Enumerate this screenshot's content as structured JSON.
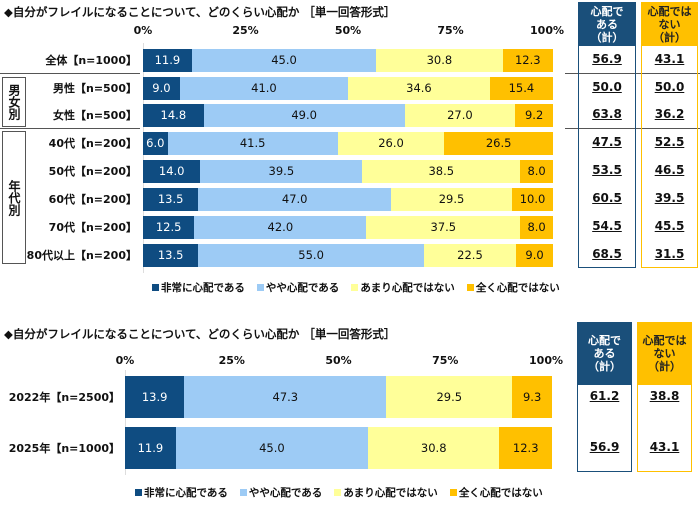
{
  "colors": {
    "very": "#0f4c81",
    "some": "#9dcbf5",
    "notmuch": "#ffff99",
    "notatall": "#ffc000",
    "header_yes": "#1a4f7a",
    "header_no": "#ffc000"
  },
  "chart_data": [
    {
      "type": "bar",
      "stacked": true,
      "orientation": "horizontal",
      "title": "◆自分がフレイルになることについて、どのくらい心配か ［単一回答形式］",
      "xticks": [
        "0%",
        "25%",
        "50%",
        "75%",
        "100%"
      ],
      "xlim": [
        0,
        100
      ],
      "groups": [
        {
          "label": "男女別",
          "rows": [
            1,
            2
          ]
        },
        {
          "label": "年代別",
          "rows": [
            3,
            4,
            5,
            6,
            7
          ]
        }
      ],
      "categories": [
        "全体【n=1000】",
        "男性【n=500】",
        "女性【n=500】",
        "40代【n=200】",
        "50代【n=200】",
        "60代【n=200】",
        "70代【n=200】",
        "80代以上【n=200】"
      ],
      "series": [
        {
          "name": "非常に心配である",
          "values": [
            11.9,
            9.0,
            14.8,
            6.0,
            14.0,
            13.5,
            12.5,
            13.5
          ]
        },
        {
          "name": "やや心配である",
          "values": [
            45.0,
            41.0,
            49.0,
            41.5,
            39.5,
            47.0,
            42.0,
            55.0
          ]
        },
        {
          "name": "あまり心配ではない",
          "values": [
            30.8,
            34.6,
            27.0,
            26.0,
            38.5,
            29.5,
            37.5,
            22.5
          ]
        },
        {
          "name": "全く心配ではない",
          "values": [
            12.3,
            15.4,
            9.2,
            26.5,
            8.0,
            10.0,
            8.0,
            9.0
          ]
        }
      ],
      "totals": {
        "yes_header": "心配で ある （計）",
        "no_header": "心配では ない （計）",
        "yes": [
          "56.9",
          "50.0",
          "63.8",
          "47.5",
          "53.5",
          "60.5",
          "54.5",
          "68.5"
        ],
        "no": [
          "43.1",
          "50.0",
          "36.2",
          "52.5",
          "46.5",
          "39.5",
          "45.5",
          "31.5"
        ]
      },
      "legend": "bottom"
    },
    {
      "type": "bar",
      "stacked": true,
      "orientation": "horizontal",
      "title": "◆自分がフレイルになることについて、どのくらい心配か ［単一回答形式］",
      "xticks": [
        "0%",
        "25%",
        "50%",
        "75%",
        "100%"
      ],
      "xlim": [
        0,
        100
      ],
      "categories": [
        "2022年【n=2500】",
        "2025年【n=1000】"
      ],
      "series": [
        {
          "name": "非常に心配である",
          "values": [
            13.9,
            11.9
          ]
        },
        {
          "name": "やや心配である",
          "values": [
            47.3,
            45.0
          ]
        },
        {
          "name": "あまり心配ではない",
          "values": [
            29.5,
            30.8
          ]
        },
        {
          "name": "全く心配ではない",
          "values": [
            9.3,
            12.3
          ]
        }
      ],
      "totals": {
        "yes_header": "心配で ある （計）",
        "no_header": "心配では ない （計）",
        "yes": [
          "61.2",
          "56.9"
        ],
        "no": [
          "38.8",
          "43.1"
        ]
      },
      "legend": "bottom"
    }
  ]
}
